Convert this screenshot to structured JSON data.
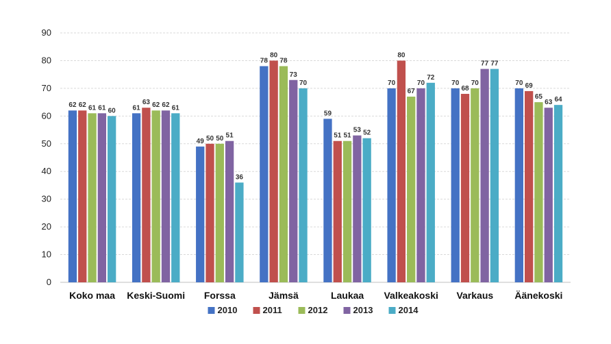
{
  "chart_data": {
    "type": "bar",
    "categories": [
      "Koko maa",
      "Keski-Suomi",
      "Forssa",
      "Jämsä",
      "Laukaa",
      "Valkeakoski",
      "Varkaus",
      "Äänekoski"
    ],
    "series": [
      {
        "name": "2010",
        "color": "#4472C4",
        "values": [
          62,
          61,
          49,
          78,
          59,
          70,
          70,
          70
        ]
      },
      {
        "name": "2011",
        "color": "#C0504D",
        "values": [
          62,
          63,
          50,
          80,
          51,
          80,
          68,
          69
        ]
      },
      {
        "name": "2012",
        "color": "#9BBB59",
        "values": [
          61,
          62,
          50,
          78,
          51,
          67,
          70,
          65
        ]
      },
      {
        "name": "2013",
        "color": "#8064A2",
        "values": [
          61,
          62,
          51,
          73,
          53,
          70,
          77,
          63
        ]
      },
      {
        "name": "2014",
        "color": "#4BACC6",
        "values": [
          60,
          61,
          36,
          70,
          52,
          72,
          77,
          64
        ]
      }
    ],
    "y_ticks": [
      0,
      10,
      20,
      30,
      40,
      50,
      60,
      70,
      80,
      90
    ],
    "ylim": [
      0,
      90
    ],
    "grid": true,
    "legend_position": "bottom",
    "data_labels": true
  }
}
